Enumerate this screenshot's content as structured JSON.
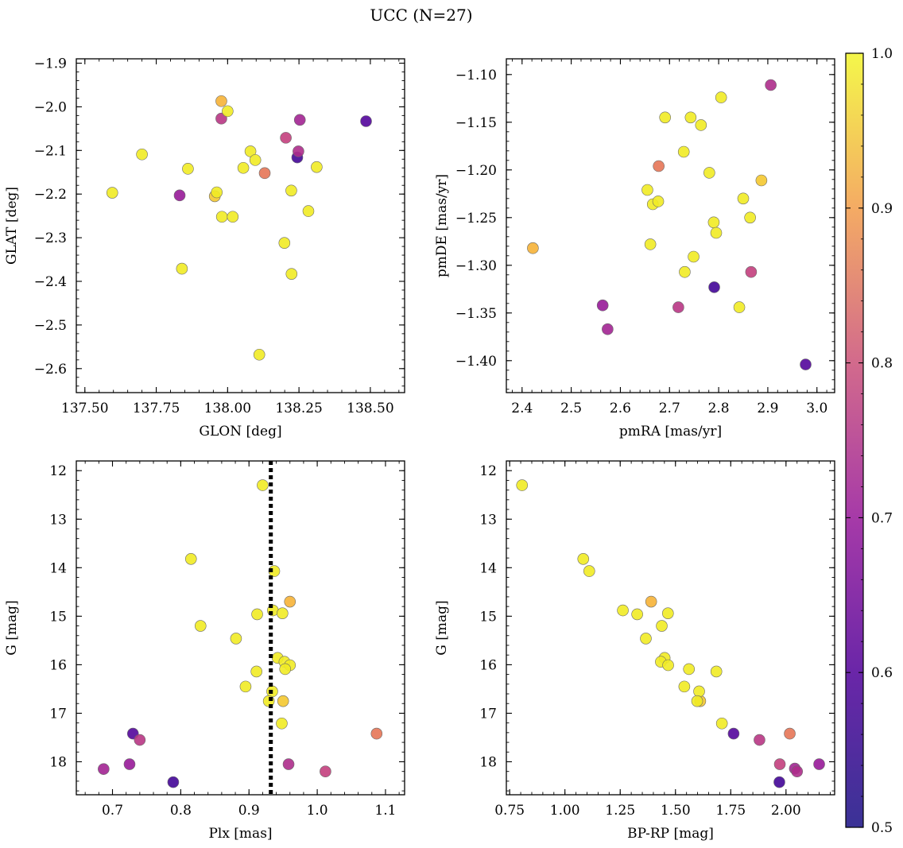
{
  "title": "UCC (N=27)",
  "colorbar": {
    "min": 0.5,
    "max": 1.0,
    "ticks": [
      "0.5",
      "0.6",
      "0.7",
      "0.8",
      "0.9",
      "1.0"
    ],
    "colormap": "plasma"
  },
  "chart_data": [
    {
      "type": "scatter",
      "title": "",
      "xlabel": "GLON [deg]",
      "ylabel": "GLAT [deg]",
      "xlim": [
        137.47,
        138.62
      ],
      "ylim": [
        -2.655,
        -1.89
      ],
      "xticks": [
        137.5,
        137.75,
        138.0,
        138.25,
        138.5
      ],
      "xtick_labels": [
        "137.50",
        "137.75",
        "138.00",
        "138.25",
        "138.50"
      ],
      "yticks": [
        -2.6,
        -2.5,
        -2.4,
        -2.3,
        -2.2,
        -2.1,
        -2.0,
        -1.9
      ],
      "ytick_labels": [
        "−2.6",
        "−2.5",
        "−2.4",
        "−2.3",
        "−2.2",
        "−2.1",
        "−2.0",
        "−1.9"
      ],
      "y_inverted": false,
      "points": [
        {
          "x": 138.244,
          "y": -2.116,
          "c": 0.5
        },
        {
          "x": 138.485,
          "y": -2.033,
          "c": 0.52
        },
        {
          "x": 137.832,
          "y": -2.203,
          "c": 0.62
        },
        {
          "x": 138.253,
          "y": -2.03,
          "c": 0.64
        },
        {
          "x": 138.248,
          "y": -2.102,
          "c": 0.66
        },
        {
          "x": 137.978,
          "y": -2.027,
          "c": 0.68
        },
        {
          "x": 138.204,
          "y": -2.071,
          "c": 0.7
        },
        {
          "x": 138.13,
          "y": -2.152,
          "c": 0.8
        },
        {
          "x": 137.978,
          "y": -1.987,
          "c": 0.9
        },
        {
          "x": 137.955,
          "y": -2.205,
          "c": 0.93
        },
        {
          "x": 137.596,
          "y": -2.197,
          "c": 0.98
        },
        {
          "x": 137.7,
          "y": -2.109,
          "c": 0.98
        },
        {
          "x": 137.861,
          "y": -2.142,
          "c": 0.98
        },
        {
          "x": 137.84,
          "y": -2.371,
          "c": 0.98
        },
        {
          "x": 137.962,
          "y": -2.196,
          "c": 0.98
        },
        {
          "x": 137.98,
          "y": -2.252,
          "c": 0.98
        },
        {
          "x": 138.0,
          "y": -2.01,
          "c": 0.98
        },
        {
          "x": 138.018,
          "y": -2.252,
          "c": 0.98
        },
        {
          "x": 138.055,
          "y": -2.14,
          "c": 0.98
        },
        {
          "x": 138.08,
          "y": -2.102,
          "c": 0.98
        },
        {
          "x": 138.097,
          "y": -2.122,
          "c": 0.98
        },
        {
          "x": 138.111,
          "y": -2.568,
          "c": 0.98
        },
        {
          "x": 138.199,
          "y": -2.312,
          "c": 0.98
        },
        {
          "x": 138.223,
          "y": -2.192,
          "c": 0.98
        },
        {
          "x": 138.224,
          "y": -2.383,
          "c": 0.98
        },
        {
          "x": 138.283,
          "y": -2.239,
          "c": 0.98
        },
        {
          "x": 138.312,
          "y": -2.138,
          "c": 0.98
        }
      ]
    },
    {
      "type": "scatter",
      "title": "",
      "xlabel": "pmRA [mas/yr]",
      "ylabel": "pmDE [mas/yr]",
      "xlim": [
        2.368,
        3.036
      ],
      "ylim": [
        -1.4335,
        -1.0835
      ],
      "xticks": [
        2.4,
        2.5,
        2.6,
        2.7,
        2.8,
        2.9,
        3.0
      ],
      "xtick_labels": [
        "2.4",
        "2.5",
        "2.6",
        "2.7",
        "2.8",
        "2.9",
        "3.0"
      ],
      "yticks": [
        -1.4,
        -1.35,
        -1.3,
        -1.25,
        -1.2,
        -1.15,
        -1.1
      ],
      "ytick_labels": [
        "−1.40",
        "−1.35",
        "−1.30",
        "−1.25",
        "−1.20",
        "−1.15",
        "−1.10"
      ],
      "y_inverted": false,
      "points": [
        {
          "x": 2.791,
          "y": -1.323,
          "c": 0.5
        },
        {
          "x": 2.977,
          "y": -1.404,
          "c": 0.52
        },
        {
          "x": 2.564,
          "y": -1.342,
          "c": 0.62
        },
        {
          "x": 2.574,
          "y": -1.367,
          "c": 0.64
        },
        {
          "x": 2.906,
          "y": -1.111,
          "c": 0.66
        },
        {
          "x": 2.718,
          "y": -1.344,
          "c": 0.68
        },
        {
          "x": 2.866,
          "y": -1.307,
          "c": 0.7
        },
        {
          "x": 2.678,
          "y": -1.196,
          "c": 0.8
        },
        {
          "x": 2.422,
          "y": -1.282,
          "c": 0.9
        },
        {
          "x": 2.887,
          "y": -1.211,
          "c": 0.93
        },
        {
          "x": 2.655,
          "y": -1.221,
          "c": 0.98
        },
        {
          "x": 2.661,
          "y": -1.278,
          "c": 0.98
        },
        {
          "x": 2.666,
          "y": -1.236,
          "c": 0.98
        },
        {
          "x": 2.677,
          "y": -1.233,
          "c": 0.98
        },
        {
          "x": 2.691,
          "y": -1.145,
          "c": 0.98
        },
        {
          "x": 2.729,
          "y": -1.181,
          "c": 0.98
        },
        {
          "x": 2.731,
          "y": -1.307,
          "c": 0.98
        },
        {
          "x": 2.743,
          "y": -1.145,
          "c": 0.98
        },
        {
          "x": 2.749,
          "y": -1.291,
          "c": 0.98
        },
        {
          "x": 2.764,
          "y": -1.153,
          "c": 0.98
        },
        {
          "x": 2.781,
          "y": -1.203,
          "c": 0.98
        },
        {
          "x": 2.79,
          "y": -1.255,
          "c": 0.98
        },
        {
          "x": 2.795,
          "y": -1.266,
          "c": 0.98
        },
        {
          "x": 2.805,
          "y": -1.124,
          "c": 0.98
        },
        {
          "x": 2.842,
          "y": -1.344,
          "c": 0.98
        },
        {
          "x": 2.85,
          "y": -1.23,
          "c": 0.98
        },
        {
          "x": 2.864,
          "y": -1.25,
          "c": 0.98
        }
      ]
    },
    {
      "type": "scatter",
      "title": "",
      "xlabel": "Plx [mas]",
      "ylabel": "G [mag]",
      "xlim": [
        0.647,
        1.128
      ],
      "ylim": [
        18.68,
        11.8
      ],
      "xticks": [
        0.7,
        0.8,
        0.9,
        1.0,
        1.1
      ],
      "xtick_labels": [
        "0.7",
        "0.8",
        "0.9",
        "1.0",
        "1.1"
      ],
      "yticks": [
        12,
        13,
        14,
        15,
        16,
        17,
        18
      ],
      "ytick_labels": [
        "12",
        "13",
        "14",
        "15",
        "16",
        "17",
        "18"
      ],
      "y_inverted": true,
      "vline": {
        "x": 0.932,
        "style": "dotted"
      },
      "points": [
        {
          "x": 0.789,
          "y": 18.42,
          "c": 0.5
        },
        {
          "x": 0.73,
          "y": 17.42,
          "c": 0.52
        },
        {
          "x": 0.687,
          "y": 18.15,
          "c": 0.64
        },
        {
          "x": 0.725,
          "y": 18.05,
          "c": 0.62
        },
        {
          "x": 0.958,
          "y": 18.05,
          "c": 0.66
        },
        {
          "x": 0.74,
          "y": 17.55,
          "c": 0.68
        },
        {
          "x": 1.012,
          "y": 18.2,
          "c": 0.7
        },
        {
          "x": 1.087,
          "y": 17.42,
          "c": 0.8
        },
        {
          "x": 0.96,
          "y": 14.7,
          "c": 0.9
        },
        {
          "x": 0.95,
          "y": 16.75,
          "c": 0.93
        },
        {
          "x": 0.92,
          "y": 12.3,
          "c": 0.98
        },
        {
          "x": 0.815,
          "y": 13.82,
          "c": 0.98
        },
        {
          "x": 0.937,
          "y": 14.07,
          "c": 0.98
        },
        {
          "x": 0.935,
          "y": 14.88,
          "c": 0.98
        },
        {
          "x": 0.912,
          "y": 14.96,
          "c": 0.98
        },
        {
          "x": 0.949,
          "y": 14.94,
          "c": 0.98
        },
        {
          "x": 0.829,
          "y": 15.2,
          "c": 0.98
        },
        {
          "x": 0.881,
          "y": 15.46,
          "c": 0.98
        },
        {
          "x": 0.942,
          "y": 15.86,
          "c": 0.98
        },
        {
          "x": 0.952,
          "y": 15.94,
          "c": 0.98
        },
        {
          "x": 0.96,
          "y": 16.01,
          "c": 0.98
        },
        {
          "x": 0.953,
          "y": 16.09,
          "c": 0.98
        },
        {
          "x": 0.911,
          "y": 16.14,
          "c": 0.98
        },
        {
          "x": 0.895,
          "y": 16.45,
          "c": 0.98
        },
        {
          "x": 0.934,
          "y": 16.55,
          "c": 0.98
        },
        {
          "x": 0.929,
          "y": 16.75,
          "c": 0.98
        },
        {
          "x": 0.948,
          "y": 17.21,
          "c": 0.98
        }
      ]
    },
    {
      "type": "scatter",
      "title": "",
      "xlabel": "BP-RP [mag]",
      "ylabel": "G [mag]",
      "xlim": [
        0.735,
        2.22
      ],
      "ylim": [
        18.68,
        11.8
      ],
      "xticks": [
        0.75,
        1.0,
        1.25,
        1.5,
        1.75,
        2.0
      ],
      "xtick_labels": [
        "0.75",
        "1.00",
        "1.25",
        "1.50",
        "1.75",
        "2.00"
      ],
      "yticks": [
        12,
        13,
        14,
        15,
        16,
        17,
        18
      ],
      "ytick_labels": [
        "12",
        "13",
        "14",
        "15",
        "16",
        "17",
        "18"
      ],
      "y_inverted": true,
      "points": [
        {
          "x": 1.97,
          "y": 18.42,
          "c": 0.5
        },
        {
          "x": 1.763,
          "y": 17.42,
          "c": 0.52
        },
        {
          "x": 2.15,
          "y": 18.05,
          "c": 0.62
        },
        {
          "x": 2.04,
          "y": 18.14,
          "c": 0.64
        },
        {
          "x": 2.05,
          "y": 18.2,
          "c": 0.66
        },
        {
          "x": 1.88,
          "y": 17.55,
          "c": 0.68
        },
        {
          "x": 1.972,
          "y": 18.05,
          "c": 0.7
        },
        {
          "x": 2.017,
          "y": 17.42,
          "c": 0.8
        },
        {
          "x": 1.39,
          "y": 14.7,
          "c": 0.9
        },
        {
          "x": 1.612,
          "y": 16.75,
          "c": 0.93
        },
        {
          "x": 0.806,
          "y": 12.3,
          "c": 0.98
        },
        {
          "x": 1.083,
          "y": 13.82,
          "c": 0.98
        },
        {
          "x": 1.11,
          "y": 14.07,
          "c": 0.98
        },
        {
          "x": 1.262,
          "y": 14.88,
          "c": 0.98
        },
        {
          "x": 1.327,
          "y": 14.96,
          "c": 0.98
        },
        {
          "x": 1.466,
          "y": 14.94,
          "c": 0.98
        },
        {
          "x": 1.438,
          "y": 15.2,
          "c": 0.98
        },
        {
          "x": 1.366,
          "y": 15.46,
          "c": 0.98
        },
        {
          "x": 1.451,
          "y": 15.86,
          "c": 0.98
        },
        {
          "x": 1.434,
          "y": 15.94,
          "c": 0.98
        },
        {
          "x": 1.467,
          "y": 16.01,
          "c": 0.98
        },
        {
          "x": 1.561,
          "y": 16.09,
          "c": 0.98
        },
        {
          "x": 1.685,
          "y": 16.14,
          "c": 0.98
        },
        {
          "x": 1.54,
          "y": 16.45,
          "c": 0.98
        },
        {
          "x": 1.607,
          "y": 16.55,
          "c": 0.98
        },
        {
          "x": 1.598,
          "y": 16.75,
          "c": 0.98
        },
        {
          "x": 1.71,
          "y": 17.21,
          "c": 0.98
        }
      ]
    }
  ]
}
